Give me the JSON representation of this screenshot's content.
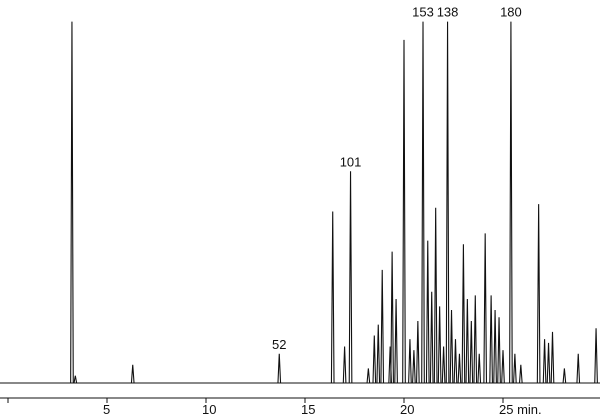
{
  "chart_data": {
    "type": "chromatogram",
    "peaks": {
      "x": [
        3.23,
        3.4,
        6.3,
        13.7,
        16.4,
        17.0,
        17.3,
        18.2,
        18.5,
        18.7,
        18.9,
        19.3,
        19.4,
        19.6,
        20.0,
        20.3,
        20.5,
        20.7,
        20.96,
        21.2,
        21.4,
        21.6,
        21.8,
        22.0,
        22.2,
        22.4,
        22.6,
        22.8,
        23.0,
        23.2,
        23.4,
        23.6,
        23.8,
        24.1,
        24.4,
        24.6,
        24.8,
        25.0,
        25.4,
        25.6,
        25.9,
        26.8,
        27.1,
        27.3,
        27.5,
        28.1,
        28.8,
        29.7
      ],
      "values": [
        99,
        2,
        5,
        8,
        47,
        10,
        58,
        4,
        13,
        16,
        31,
        10,
        36,
        23,
        94,
        12,
        9,
        17,
        99,
        39,
        25,
        48,
        21,
        10,
        99,
        20,
        12,
        8,
        38,
        23,
        17,
        24,
        8,
        41,
        24,
        20,
        18,
        9,
        99,
        8,
        5,
        49,
        12,
        11,
        14,
        4,
        8,
        15
      ],
      "labels": [
        null,
        null,
        null,
        "52",
        null,
        null,
        "101",
        null,
        null,
        null,
        null,
        null,
        null,
        null,
        null,
        null,
        null,
        null,
        "153",
        null,
        null,
        null,
        null,
        null,
        "138",
        null,
        null,
        null,
        null,
        null,
        null,
        null,
        null,
        null,
        null,
        null,
        null,
        null,
        "180",
        null,
        null,
        null,
        null,
        null,
        null,
        null,
        null,
        null
      ]
    },
    "color": "#111111",
    "xlim": [
      0,
      30
    ],
    "xticks": [
      0,
      5,
      10,
      15,
      20,
      {
        "value": 25,
        "label": "25 min."
      }
    ],
    "ylim": [
      0,
      100
    ]
  }
}
